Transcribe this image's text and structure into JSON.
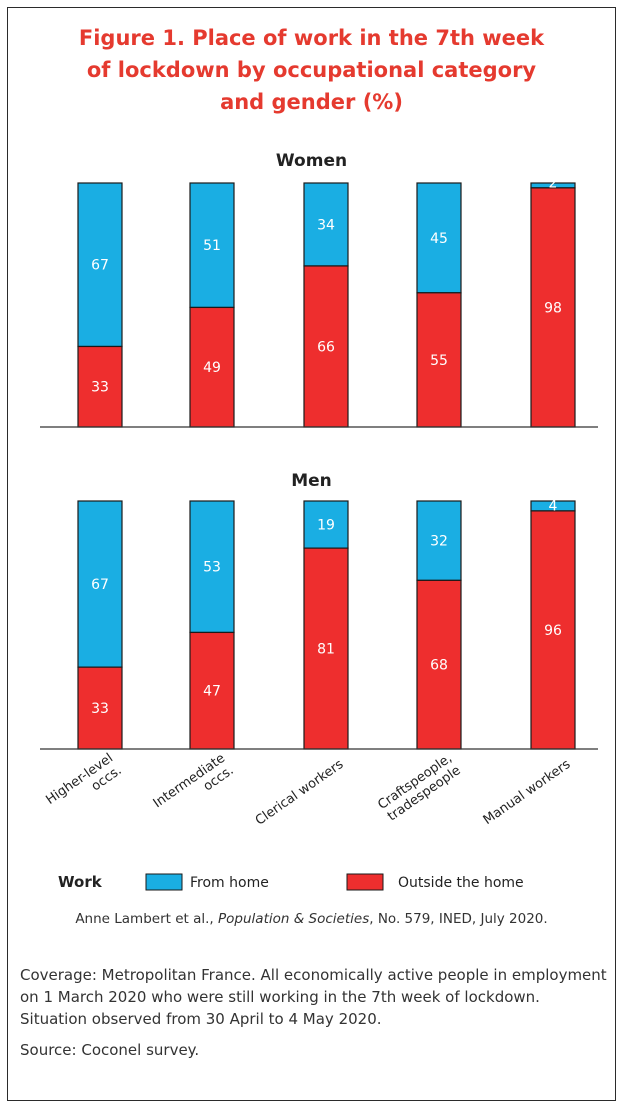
{
  "figure": {
    "title_lines": [
      "Figure 1. Place of work in the 7th week",
      "of lockdown by occupational category",
      "and gender (%)"
    ],
    "credit_author": "Anne Lambert et al.,",
    "credit_journal": "Population & Societies",
    "credit_rest": ", No. 579, INED, July 2020.",
    "coverage": "Coverage: Metropolitan France. All economically active people in employment on 1 March 2020 who were still working in the 7th week of lockdown. Situation observed from 30 April to 4 May 2020.",
    "source": "Source: Coconel survey."
  },
  "colors": {
    "from_home": "#1aaee3",
    "outside_home": "#ee2e2e",
    "title": "#e53a2f"
  },
  "chart_data": {
    "type": "bar",
    "stacked": true,
    "categories": [
      "Higher-level occs.",
      "Intermediate occs.",
      "Clerical workers",
      "Craftspeople, tradespeople",
      "Manual workers"
    ],
    "category_label_lines": [
      [
        "Higher-level",
        "occs."
      ],
      [
        "Intermediate",
        "occs."
      ],
      [
        "Clerical workers"
      ],
      [
        "Craftspeople,",
        "tradespeople"
      ],
      [
        "Manual workers"
      ]
    ],
    "legend": {
      "title": "Work",
      "items": [
        "From home",
        "Outside the home"
      ]
    },
    "ylim": [
      0,
      100
    ],
    "panels": [
      {
        "title": "Women",
        "series": [
          {
            "name": "Outside the home",
            "values": [
              33,
              49,
              66,
              55,
              98
            ]
          },
          {
            "name": "From home",
            "values": [
              67,
              51,
              34,
              45,
              2
            ]
          }
        ]
      },
      {
        "title": "Men",
        "series": [
          {
            "name": "Outside the home",
            "values": [
              33,
              47,
              81,
              68,
              96
            ]
          },
          {
            "name": "From home",
            "values": [
              67,
              53,
              19,
              32,
              4
            ]
          }
        ]
      }
    ]
  }
}
